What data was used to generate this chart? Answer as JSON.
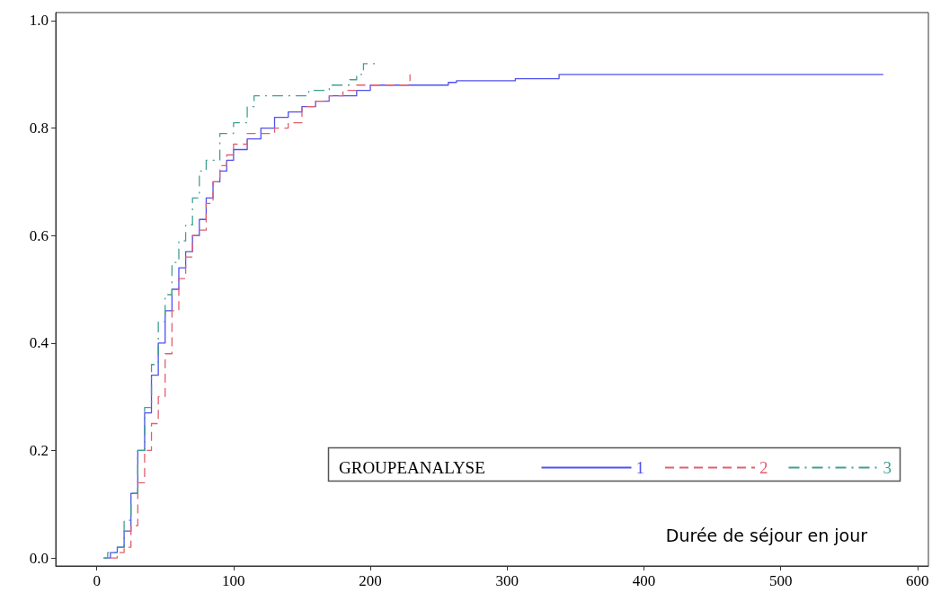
{
  "chart_data": {
    "type": "step",
    "xlabel": "Durée de séjour en jour",
    "legend_title": "GROUPEANALYSE",
    "legend": "bottom right",
    "grid": false,
    "marker": "none",
    "xlim": [
      -30,
      608
    ],
    "xticks": [
      0,
      100,
      200,
      300,
      400,
      500,
      600
    ],
    "ylim": [
      -0.015,
      1.015
    ],
    "yticks": [
      {
        "value": 0,
        "label": "0.0"
      },
      0.2,
      0.4,
      0.6,
      0.8,
      {
        "value": 1,
        "label": "1.0"
      }
    ],
    "series": [
      {
        "name": "1",
        "color": "#5050f0",
        "line_style": "solid",
        "x": [
          5,
          10,
          15,
          20,
          25,
          30,
          35,
          40,
          45,
          50,
          55,
          60,
          65,
          70,
          75,
          80,
          85,
          90,
          95,
          100,
          110,
          120,
          130,
          140,
          150,
          160,
          170,
          190,
          200,
          251,
          257,
          263,
          306,
          338,
          575
        ],
        "values": [
          0,
          0.01,
          0.02,
          0.05,
          0.12,
          0.2,
          0.27,
          0.34,
          0.4,
          0.46,
          0.5,
          0.54,
          0.57,
          0.6,
          0.63,
          0.67,
          0.7,
          0.72,
          0.74,
          0.76,
          0.78,
          0.8,
          0.82,
          0.83,
          0.84,
          0.85,
          0.86,
          0.87,
          0.88,
          0.88,
          0.885,
          0.888,
          0.892,
          0.9,
          0.9
        ]
      },
      {
        "name": "2",
        "color": "#e06070",
        "line_style": "dashed",
        "x": [
          10,
          15,
          20,
          25,
          30,
          35,
          40,
          45,
          50,
          55,
          60,
          65,
          70,
          75,
          80,
          85,
          90,
          95,
          100,
          110,
          120,
          130,
          140,
          150,
          160,
          170,
          180,
          190,
          228,
          229
        ],
        "values": [
          0,
          0.01,
          0.02,
          0.06,
          0.14,
          0.2,
          0.25,
          0.3,
          0.38,
          0.46,
          0.52,
          0.56,
          0.6,
          0.61,
          0.66,
          0.7,
          0.73,
          0.75,
          0.77,
          0.79,
          0.79,
          0.8,
          0.81,
          0.84,
          0.85,
          0.86,
          0.87,
          0.88,
          0.885,
          0.9
        ]
      },
      {
        "name": "3",
        "color": "#40a090",
        "line_style": "dashdot",
        "x": [
          5,
          8,
          15,
          20,
          25,
          30,
          35,
          40,
          45,
          50,
          55,
          60,
          65,
          70,
          75,
          80,
          90,
          100,
          110,
          115,
          150,
          155,
          170,
          185,
          190,
          195,
          205
        ],
        "values": [
          0,
          0.01,
          0.02,
          0.07,
          0.12,
          0.2,
          0.28,
          0.36,
          0.44,
          0.49,
          0.55,
          0.59,
          0.62,
          0.67,
          0.72,
          0.74,
          0.79,
          0.81,
          0.84,
          0.86,
          0.86,
          0.87,
          0.88,
          0.89,
          0.9,
          0.92,
          0.92
        ]
      }
    ]
  }
}
